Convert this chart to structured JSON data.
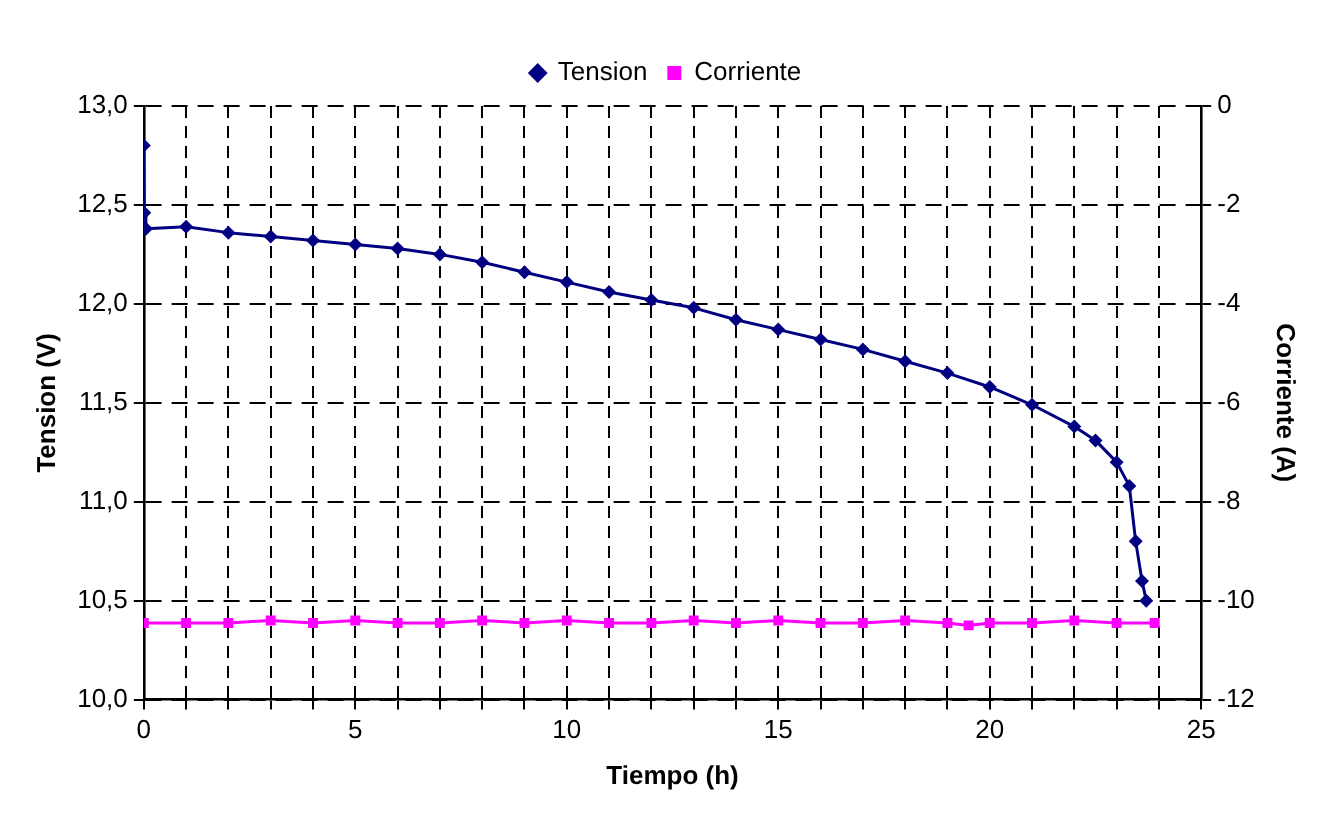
{
  "chart_data": {
    "type": "line",
    "xlabel": "Tiempo (h)",
    "ylabel": "Tension (V)",
    "y2label": "Corriente (A)",
    "xlim": [
      0,
      25
    ],
    "xticks": [
      0,
      {
        "value": 1,
        "label": null
      },
      {
        "value": 2,
        "label": null
      },
      {
        "value": 3,
        "label": null
      },
      {
        "value": 4,
        "label": null
      },
      5,
      {
        "value": 6,
        "label": null
      },
      {
        "value": 7,
        "label": null
      },
      {
        "value": 8,
        "label": null
      },
      {
        "value": 9,
        "label": null
      },
      10,
      {
        "value": 11,
        "label": null
      },
      {
        "value": 12,
        "label": null
      },
      {
        "value": 13,
        "label": null
      },
      {
        "value": 14,
        "label": null
      },
      15,
      {
        "value": 16,
        "label": null
      },
      {
        "value": 17,
        "label": null
      },
      {
        "value": 18,
        "label": null
      },
      {
        "value": 19,
        "label": null
      },
      20,
      {
        "value": 21,
        "label": null
      },
      {
        "value": 22,
        "label": null
      },
      {
        "value": 23,
        "label": null
      },
      {
        "value": 24,
        "label": null
      },
      25
    ],
    "ylim": [
      10,
      13
    ],
    "yticks": [
      {
        "value": 10,
        "label": "10,0"
      },
      {
        "value": 10.5,
        "label": "10,5"
      },
      {
        "value": 11,
        "label": "11,0"
      },
      {
        "value": 11.5,
        "label": "11,5"
      },
      {
        "value": 12,
        "label": "12,0"
      },
      {
        "value": 12.5,
        "label": "12,5"
      },
      {
        "value": 13,
        "label": "13,0"
      }
    ],
    "y2lim": [
      -12,
      0
    ],
    "y2ticks": [
      -12,
      -10,
      -8,
      -6,
      -4,
      -2,
      0
    ],
    "grid": true,
    "legend": "top",
    "line_style": "solid",
    "series": [
      {
        "name": "Tension",
        "color": "#000080",
        "marker": "diamond",
        "x": [
          0,
          0.01,
          0.05,
          1,
          2,
          3,
          4,
          5,
          6,
          7,
          8,
          9,
          10,
          11,
          12,
          13,
          14,
          15,
          16,
          17,
          18,
          19,
          20,
          21,
          22,
          22.5,
          23,
          23.3,
          23.45,
          23.6,
          23.7
        ],
        "values": [
          12.8,
          12.46,
          12.38,
          12.39,
          12.36,
          12.34,
          12.32,
          12.3,
          12.28,
          12.25,
          12.21,
          12.16,
          12.11,
          12.06,
          12.02,
          11.98,
          11.92,
          11.87,
          11.82,
          11.77,
          11.71,
          11.65,
          11.58,
          11.49,
          11.38,
          11.31,
          11.2,
          11.08,
          10.8,
          10.6,
          10.5
        ]
      },
      {
        "name": "Corriente",
        "color": "#ff00ff",
        "marker": "square",
        "axis": "y2",
        "x": [
          0,
          1,
          2,
          3,
          4,
          5,
          6,
          7,
          8,
          9,
          10,
          11,
          12,
          13,
          14,
          15,
          16,
          17,
          18,
          19,
          19.5,
          20,
          21,
          22,
          23,
          23.9
        ],
        "values": [
          -10.45,
          -10.45,
          -10.45,
          -10.4,
          -10.45,
          -10.4,
          -10.45,
          -10.45,
          -10.4,
          -10.45,
          -10.4,
          -10.45,
          -10.45,
          -10.4,
          -10.45,
          -10.4,
          -10.45,
          -10.45,
          -10.4,
          -10.45,
          -10.5,
          -10.45,
          -10.45,
          -10.4,
          -10.45,
          -10.45
        ]
      }
    ]
  }
}
